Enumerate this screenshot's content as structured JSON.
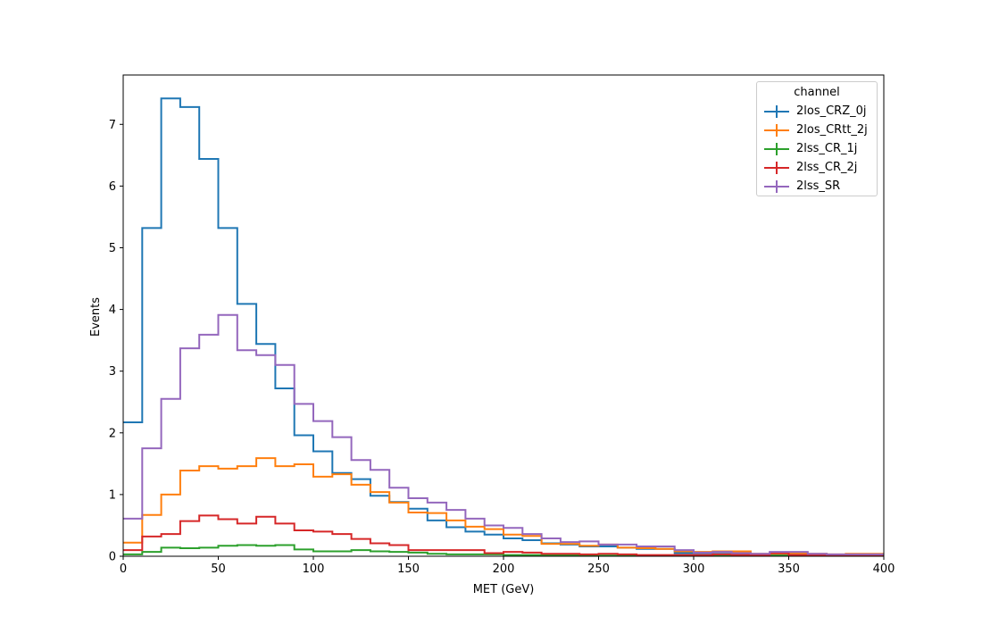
{
  "chart_data": {
    "type": "histogram-step",
    "xlabel": "MET (GeV)",
    "ylabel": "Events",
    "xlim": [
      0,
      400
    ],
    "ylim": [
      0,
      7.8
    ],
    "xticks": [
      0,
      50,
      100,
      150,
      200,
      250,
      300,
      350,
      400
    ],
    "yticks": [
      0,
      1,
      2,
      3,
      4,
      5,
      6,
      7
    ],
    "bin_edges": [
      0,
      10,
      20,
      30,
      40,
      50,
      60,
      70,
      80,
      90,
      100,
      110,
      120,
      130,
      140,
      150,
      160,
      170,
      180,
      190,
      200,
      210,
      220,
      230,
      240,
      250,
      260,
      270,
      280,
      290,
      300,
      310,
      320,
      330,
      340,
      350,
      360,
      370,
      380,
      390,
      400
    ],
    "grid": false,
    "legend": {
      "title": "channel",
      "placement": "top-right"
    },
    "series": [
      {
        "name": "2los_CRZ_0j",
        "color": "#1f77b4",
        "values": [
          2.17,
          5.32,
          7.42,
          7.28,
          6.44,
          5.32,
          4.09,
          3.44,
          2.72,
          1.96,
          1.7,
          1.35,
          1.25,
          0.98,
          0.88,
          0.77,
          0.58,
          0.47,
          0.4,
          0.35,
          0.29,
          0.26,
          0.21,
          0.19,
          0.16,
          0.16,
          0.14,
          0.12,
          0.12,
          0.05,
          0.05,
          0.04,
          0.03,
          0.02,
          0.02,
          0.02,
          0.02,
          0.01,
          0.02,
          0.02
        ]
      },
      {
        "name": "2los_CRtt_2j",
        "color": "#ff7f0e",
        "values": [
          0.22,
          0.67,
          1.0,
          1.39,
          1.46,
          1.42,
          1.46,
          1.59,
          1.46,
          1.49,
          1.29,
          1.33,
          1.16,
          1.04,
          0.87,
          0.71,
          0.7,
          0.58,
          0.48,
          0.44,
          0.35,
          0.33,
          0.2,
          0.2,
          0.17,
          0.19,
          0.14,
          0.13,
          0.12,
          0.08,
          0.07,
          0.08,
          0.08,
          0.04,
          0.04,
          0.05,
          0.04,
          0.03,
          0.04,
          0.04
        ]
      },
      {
        "name": "2lss_CR_1j",
        "color": "#2ca02c",
        "values": [
          0.03,
          0.07,
          0.14,
          0.13,
          0.14,
          0.17,
          0.18,
          0.17,
          0.18,
          0.11,
          0.08,
          0.08,
          0.1,
          0.08,
          0.07,
          0.06,
          0.04,
          0.03,
          0.03,
          0.03,
          0.02,
          0.02,
          0.02,
          0.02,
          0.01,
          0.01,
          0.01,
          0.01,
          0.01,
          0.01,
          0.01,
          0.01,
          0.01,
          0.01,
          0.01,
          0.01,
          0.01,
          0.01,
          0.01,
          0.01
        ]
      },
      {
        "name": "2lss_CR_2j",
        "color": "#d62728",
        "values": [
          0.1,
          0.32,
          0.36,
          0.57,
          0.66,
          0.6,
          0.53,
          0.64,
          0.53,
          0.42,
          0.4,
          0.36,
          0.28,
          0.21,
          0.18,
          0.1,
          0.1,
          0.1,
          0.1,
          0.05,
          0.07,
          0.06,
          0.04,
          0.04,
          0.03,
          0.04,
          0.03,
          0.02,
          0.02,
          0.02,
          0.02,
          0.03,
          0.02,
          0.02,
          0.05,
          0.02,
          0.02,
          0.01,
          0.02,
          0.01
        ]
      },
      {
        "name": "2lss_SR",
        "color": "#9467bd",
        "values": [
          0.61,
          1.75,
          2.55,
          3.37,
          3.59,
          3.91,
          3.34,
          3.26,
          3.1,
          2.47,
          2.19,
          1.93,
          1.56,
          1.4,
          1.11,
          0.94,
          0.87,
          0.75,
          0.61,
          0.5,
          0.46,
          0.36,
          0.29,
          0.23,
          0.24,
          0.19,
          0.19,
          0.16,
          0.16,
          0.1,
          0.06,
          0.07,
          0.05,
          0.04,
          0.07,
          0.07,
          0.04,
          0.03,
          0.03,
          0.03
        ]
      }
    ]
  }
}
